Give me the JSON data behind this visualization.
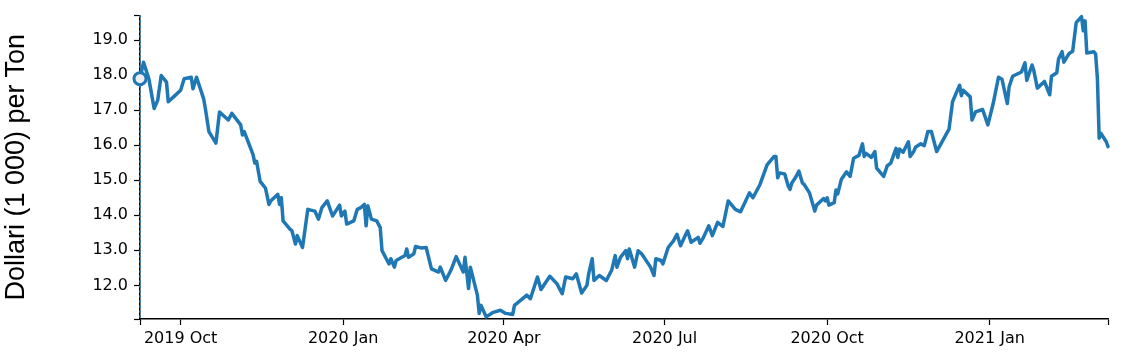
{
  "chart_data": {
    "type": "line",
    "ylabel": "Dollari (1 000) per Ton",
    "xlim": [
      "2019-09-08",
      "2021-03-09"
    ],
    "xticks": [
      {
        "value": "2019-09-08",
        "label": null
      },
      {
        "value": "2019-10-01",
        "label": "2019 Oct"
      },
      {
        "value": "2020-01-01",
        "label": "2020 Jan"
      },
      {
        "value": "2020-04-01",
        "label": "2020 Apr"
      },
      {
        "value": "2020-07-01",
        "label": "2020 Jul"
      },
      {
        "value": "2020-10-01",
        "label": "2020 Oct"
      },
      {
        "value": "2021-01-01",
        "label": "2021 Jan"
      },
      {
        "value": "2021-03-09",
        "label": null
      }
    ],
    "ylim": [
      11.04,
      19.7
    ],
    "yticks": [
      {
        "value": 11.04,
        "label": null
      },
      {
        "value": 12,
        "label": "12.0"
      },
      {
        "value": 13,
        "label": "13.0"
      },
      {
        "value": 14,
        "label": "14.0"
      },
      {
        "value": 15,
        "label": "15.0"
      },
      {
        "value": 16,
        "label": "16.0"
      },
      {
        "value": 17,
        "label": "17.0"
      },
      {
        "value": 18,
        "label": "18.0"
      },
      {
        "value": 19,
        "label": "19.0"
      },
      {
        "value": 19.7,
        "label": null
      }
    ],
    "legend": false,
    "ref_lines": [
      {
        "axis": "x",
        "value": "2019-09-08",
        "color": "#1f77b4",
        "line_style": "dotted"
      }
    ],
    "series": [
      {
        "color": "#1f77b4",
        "line_style": "solid",
        "x": [
          "2019-09-08",
          "2019-09-10",
          "2019-09-13",
          "2019-09-16",
          "2019-09-18",
          "2019-09-20",
          "2019-09-23",
          "2019-09-24",
          "2019-09-27",
          "2019-10-01",
          "2019-10-03",
          "2019-10-07",
          "2019-10-08",
          "2019-10-10",
          "2019-10-14",
          "2019-10-15",
          "2019-10-17",
          "2019-10-21",
          "2019-10-23",
          "2019-10-28",
          "2019-10-30",
          "2019-11-04",
          "2019-11-05",
          "2019-11-06",
          "2019-11-11",
          "2019-11-12",
          "2019-11-13",
          "2019-11-15",
          "2019-11-18",
          "2019-11-20",
          "2019-11-21",
          "2019-11-25",
          "2019-11-26",
          "2019-11-27",
          "2019-11-28",
          "2019-12-02",
          "2019-12-03",
          "2019-12-05",
          "2019-12-06",
          "2019-12-09",
          "2019-12-12",
          "2019-12-16",
          "2019-12-18",
          "2019-12-20",
          "2019-12-23",
          "2019-12-26",
          "2019-12-30",
          "2019-12-31",
          "2020-01-02",
          "2020-01-03",
          "2020-01-07",
          "2020-01-09",
          "2020-01-11",
          "2020-01-13",
          "2020-01-14",
          "2020-01-15",
          "2020-01-17",
          "2020-01-20",
          "2020-01-22",
          "2020-01-23",
          "2020-01-27",
          "2020-01-28",
          "2020-01-30",
          "2020-01-31",
          "2020-02-05",
          "2020-02-06",
          "2020-02-07",
          "2020-02-10",
          "2020-02-11",
          "2020-02-14",
          "2020-02-17",
          "2020-02-20",
          "2020-02-24",
          "2020-02-25",
          "2020-02-28",
          "2020-03-02",
          "2020-03-05",
          "2020-03-09",
          "2020-03-10",
          "2020-03-12",
          "2020-03-13",
          "2020-03-17",
          "2020-03-18",
          "2020-03-19",
          "2020-03-22",
          "2020-03-26",
          "2020-03-30",
          "2020-04-02",
          "2020-04-06",
          "2020-04-07",
          "2020-04-14",
          "2020-04-16",
          "2020-04-20",
          "2020-04-22",
          "2020-04-27",
          "2020-05-01",
          "2020-05-04",
          "2020-05-06",
          "2020-05-10",
          "2020-05-12",
          "2020-05-15",
          "2020-05-18",
          "2020-05-19",
          "2020-05-21",
          "2020-05-22",
          "2020-05-25",
          "2020-05-29",
          "2020-06-01",
          "2020-06-03",
          "2020-06-04",
          "2020-06-06",
          "2020-06-09",
          "2020-06-10",
          "2020-06-11",
          "2020-06-14",
          "2020-06-16",
          "2020-06-18",
          "2020-06-23",
          "2020-06-25",
          "2020-06-26",
          "2020-06-29",
          "2020-06-30",
          "2020-07-03",
          "2020-07-06",
          "2020-07-08",
          "2020-07-10",
          "2020-07-13",
          "2020-07-14",
          "2020-07-16",
          "2020-07-20",
          "2020-07-21",
          "2020-07-23",
          "2020-07-26",
          "2020-07-28",
          "2020-07-31",
          "2020-08-03",
          "2020-08-06",
          "2020-08-10",
          "2020-08-13",
          "2020-08-18",
          "2020-08-20",
          "2020-08-24",
          "2020-08-28",
          "2020-09-01",
          "2020-09-02",
          "2020-09-03",
          "2020-09-04",
          "2020-09-07",
          "2020-09-09",
          "2020-09-10",
          "2020-09-11",
          "2020-09-13",
          "2020-09-15",
          "2020-09-17",
          "2020-09-18",
          "2020-09-21",
          "2020-09-24",
          "2020-09-25",
          "2020-09-29",
          "2020-09-30",
          "2020-10-01",
          "2020-10-02",
          "2020-10-05",
          "2020-10-06",
          "2020-10-07",
          "2020-10-09",
          "2020-10-12",
          "2020-10-14",
          "2020-10-16",
          "2020-10-19",
          "2020-10-21",
          "2020-10-22",
          "2020-10-23",
          "2020-10-26",
          "2020-10-28",
          "2020-10-29",
          "2020-11-02",
          "2020-11-04",
          "2020-11-06",
          "2020-11-09",
          "2020-11-10",
          "2020-11-11",
          "2020-11-13",
          "2020-11-16",
          "2020-11-17",
          "2020-11-19",
          "2020-11-20",
          "2020-11-23",
          "2020-11-25",
          "2020-11-27",
          "2020-11-29",
          "2020-12-02",
          "2020-12-09",
          "2020-12-11",
          "2020-12-14",
          "2020-12-15",
          "2020-12-16",
          "2020-12-17",
          "2020-12-21",
          "2020-12-22",
          "2020-12-24",
          "2020-12-28",
          "2020-12-31",
          "2021-01-03",
          "2021-01-06",
          "2021-01-08",
          "2021-01-11",
          "2021-01-12",
          "2021-01-14",
          "2021-01-19",
          "2021-01-21",
          "2021-01-22",
          "2021-01-25",
          "2021-01-26",
          "2021-01-28",
          "2021-02-01",
          "2021-02-04",
          "2021-02-05",
          "2021-02-08",
          "2021-02-09",
          "2021-02-11",
          "2021-02-12",
          "2021-02-15",
          "2021-02-17",
          "2021-02-19",
          "2021-02-22",
          "2021-02-23",
          "2021-02-24",
          "2021-02-25",
          "2021-03-01",
          "2021-03-02",
          "2021-03-03",
          "2021-03-04",
          "2021-03-05",
          "2021-03-08",
          "2021-03-09"
        ],
        "values": [
          17.9,
          18.37,
          17.9,
          17.05,
          17.28,
          17.99,
          17.8,
          17.24,
          17.38,
          17.57,
          17.9,
          17.94,
          17.61,
          17.94,
          17.33,
          17.05,
          16.39,
          16.06,
          16.95,
          16.72,
          16.91,
          16.58,
          16.29,
          16.39,
          15.73,
          15.49,
          15.54,
          14.97,
          14.78,
          14.31,
          14.41,
          14.6,
          14.31,
          14.5,
          13.84,
          13.6,
          13.56,
          13.18,
          13.42,
          13.08,
          14.17,
          14.12,
          13.89,
          14.22,
          14.41,
          13.98,
          14.29,
          13.98,
          14.12,
          13.75,
          13.84,
          14.17,
          14.22,
          14.31,
          13.7,
          14.27,
          13.89,
          13.84,
          13.65,
          12.99,
          12.61,
          12.76,
          12.52,
          12.71,
          12.85,
          13.04,
          12.8,
          12.9,
          13.11,
          13.07,
          13.08,
          12.47,
          12.38,
          12.52,
          12.14,
          12.43,
          12.82,
          12.38,
          12.8,
          11.91,
          12.52,
          11.72,
          11.2,
          11.43,
          11.1,
          11.23,
          11.29,
          11.2,
          11.17,
          11.43,
          11.72,
          11.62,
          12.24,
          11.88,
          12.26,
          12.05,
          11.76,
          12.24,
          12.19,
          12.33,
          11.78,
          12.0,
          12.33,
          12.76,
          12.14,
          12.28,
          12.14,
          12.43,
          12.85,
          12.52,
          12.8,
          12.99,
          12.76,
          13.04,
          12.52,
          12.99,
          12.9,
          12.52,
          12.28,
          12.76,
          12.71,
          12.61,
          13.08,
          13.27,
          13.46,
          13.13,
          13.46,
          13.56,
          13.23,
          13.37,
          13.2,
          13.37,
          13.7,
          13.42,
          13.8,
          13.68,
          14.41,
          14.17,
          14.1,
          14.64,
          14.5,
          14.88,
          15.44,
          15.68,
          15.68,
          15.07,
          15.21,
          15.18,
          14.83,
          14.74,
          14.92,
          15.07,
          15.26,
          14.92,
          14.88,
          14.64,
          14.12,
          14.29,
          14.48,
          14.41,
          14.5,
          14.29,
          14.36,
          14.72,
          14.61,
          15.02,
          15.24,
          15.11,
          15.63,
          15.71,
          16.04,
          15.68,
          15.77,
          15.65,
          15.82,
          15.35,
          15.11,
          15.41,
          15.49,
          15.91,
          15.65,
          15.89,
          15.8,
          16.1,
          15.68,
          15.82,
          15.94,
          16.04,
          15.99,
          16.39,
          16.39,
          15.82,
          16.46,
          17.24,
          17.6,
          17.71,
          17.41,
          17.57,
          17.38,
          16.72,
          16.95,
          17.02,
          16.58,
          17.19,
          17.94,
          17.88,
          17.19,
          17.66,
          17.97,
          18.09,
          18.35,
          17.85,
          18.29,
          18.13,
          17.63,
          17.82,
          17.44,
          17.97,
          18.07,
          18.46,
          18.67,
          18.37,
          18.62,
          18.68,
          19.5,
          19.67,
          19.27,
          19.55,
          18.63,
          18.67,
          18.6,
          17.9,
          16.2,
          16.34,
          16.1,
          15.96
        ]
      },
      {
        "type": "scatter",
        "color": "#1f77b4",
        "marker": "circle",
        "x": [
          "2019-09-08"
        ],
        "values": [
          17.9
        ]
      }
    ]
  }
}
